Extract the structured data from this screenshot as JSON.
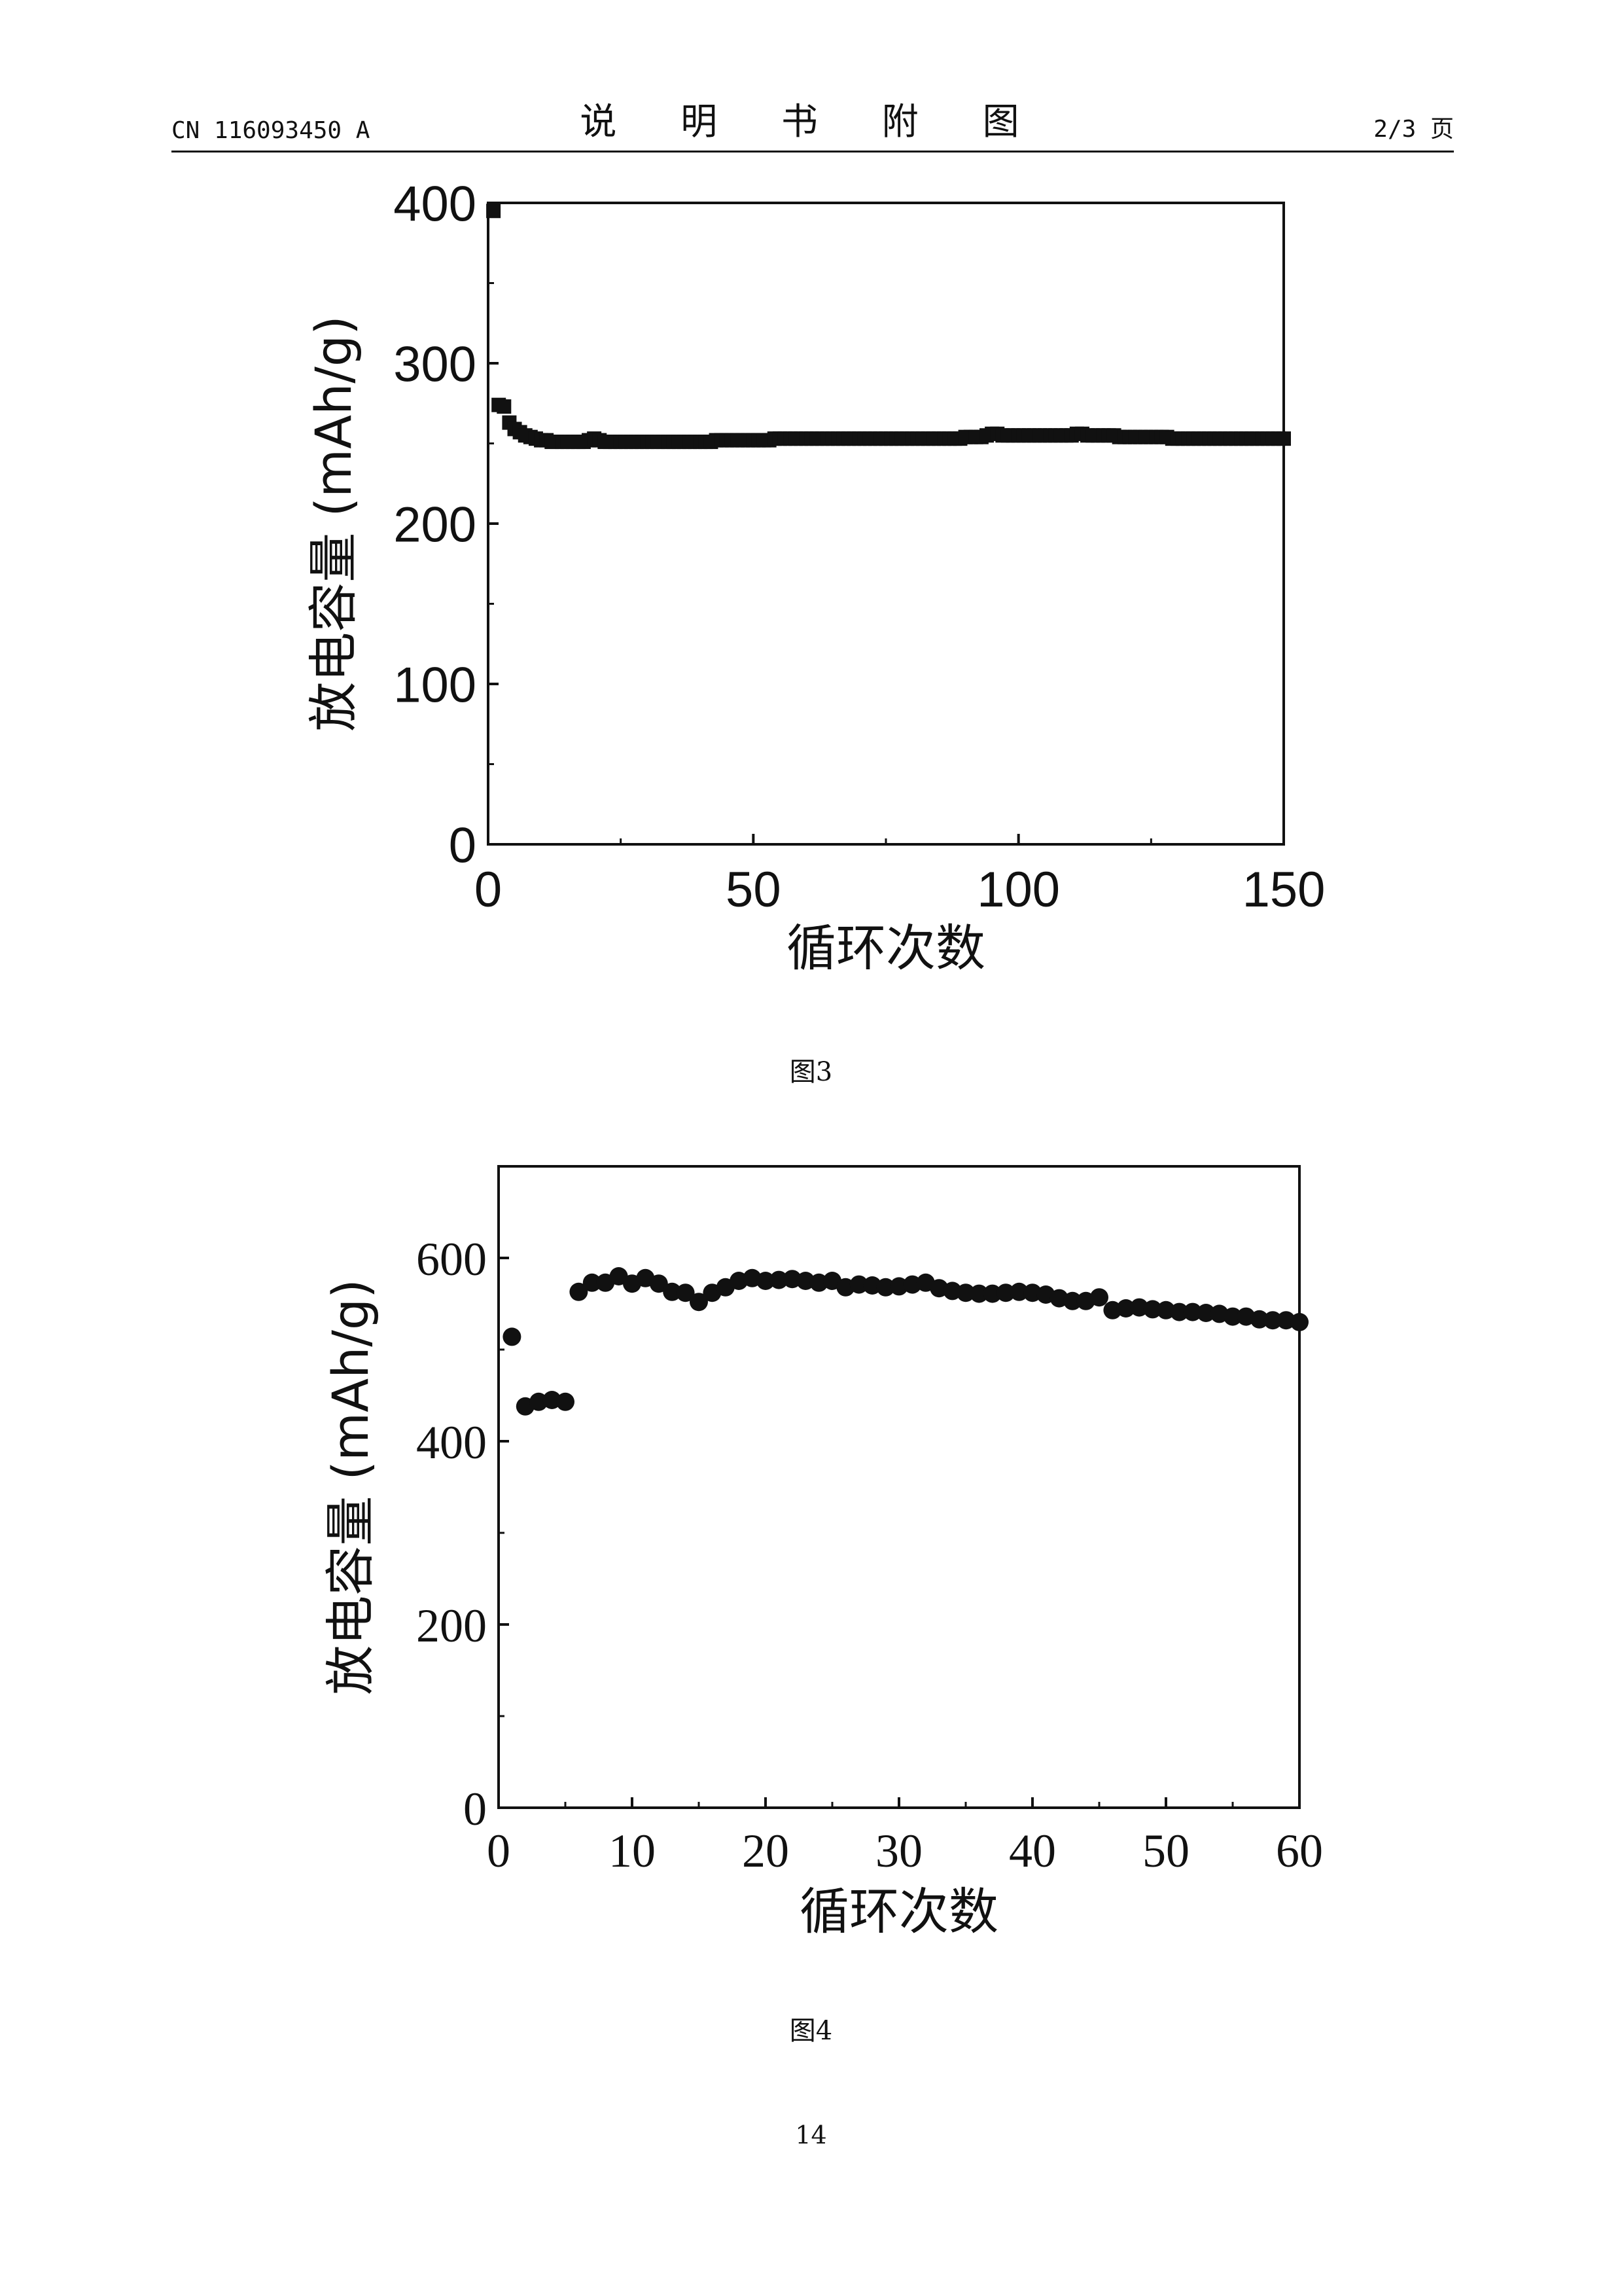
{
  "header": {
    "doc_number": "CN 116093450 A",
    "title": "说 明 书 附 图",
    "page_of": "2/3 页"
  },
  "figures": [
    {
      "caption": "图3"
    },
    {
      "caption": "图4"
    }
  ],
  "page_number": "14",
  "chart_data": [
    {
      "type": "scatter",
      "marker": "square",
      "title": "",
      "xlabel": "循环次数",
      "ylabel": "放电容量 (mAh/g)",
      "xlim": [
        0,
        150
      ],
      "ylim": [
        0,
        400
      ],
      "xticks": [
        0,
        50,
        100,
        150
      ],
      "yticks": [
        0,
        100,
        200,
        300,
        400
      ],
      "x": [
        1,
        2,
        3,
        4,
        5,
        6,
        7,
        8,
        9,
        10,
        11,
        12,
        13,
        14,
        15,
        16,
        17,
        18,
        19,
        20,
        21,
        22,
        23,
        24,
        25,
        26,
        27,
        28,
        29,
        30,
        31,
        32,
        33,
        34,
        35,
        36,
        37,
        38,
        39,
        40,
        41,
        42,
        43,
        44,
        45,
        46,
        47,
        48,
        49,
        50,
        51,
        52,
        53,
        54,
        55,
        56,
        57,
        58,
        59,
        60,
        61,
        62,
        63,
        64,
        65,
        66,
        67,
        68,
        69,
        70,
        71,
        72,
        73,
        74,
        75,
        76,
        77,
        78,
        79,
        80,
        81,
        82,
        83,
        84,
        85,
        86,
        87,
        88,
        89,
        90,
        91,
        92,
        93,
        94,
        95,
        96,
        97,
        98,
        99,
        100,
        101,
        102,
        103,
        104,
        105,
        106,
        107,
        108,
        109,
        110,
        111,
        112,
        113,
        114,
        115,
        116,
        117,
        118,
        119,
        120,
        121,
        122,
        123,
        124,
        125,
        126,
        127,
        128,
        129,
        130,
        131,
        132,
        133,
        134,
        135,
        136,
        137,
        138,
        139,
        140,
        141,
        142,
        143,
        144,
        145,
        146,
        147,
        148,
        149,
        150
      ],
      "y": [
        395,
        274,
        273,
        263,
        259,
        257,
        255,
        254,
        253,
        252,
        252,
        251,
        251,
        251,
        251,
        251,
        251,
        251,
        252,
        253,
        252,
        251,
        251,
        251,
        251,
        251,
        251,
        251,
        251,
        251,
        251,
        251,
        251,
        251,
        251,
        251,
        251,
        251,
        251,
        251,
        251,
        251,
        252,
        252,
        252,
        252,
        252,
        252,
        252,
        252,
        252,
        252,
        252,
        253,
        253,
        253,
        253,
        253,
        253,
        253,
        253,
        253,
        253,
        253,
        253,
        253,
        253,
        253,
        253,
        253,
        253,
        253,
        253,
        253,
        253,
        253,
        253,
        253,
        253,
        253,
        253,
        253,
        253,
        253,
        253,
        253,
        253,
        253,
        253,
        254,
        254,
        254,
        254,
        255,
        256,
        256,
        255,
        255,
        255,
        255,
        255,
        255,
        255,
        255,
        255,
        255,
        255,
        255,
        255,
        255,
        256,
        256,
        255,
        255,
        255,
        255,
        255,
        255,
        254,
        254,
        254,
        254,
        254,
        254,
        254,
        254,
        254,
        254,
        253,
        253,
        253,
        253,
        253,
        253,
        253,
        253,
        253,
        253,
        253,
        253,
        253,
        253,
        253,
        253,
        253,
        253,
        253,
        253,
        253,
        253
      ]
    },
    {
      "type": "scatter",
      "marker": "circle",
      "title": "",
      "xlabel": "循环次数",
      "ylabel": "放电容量 (mAh/g)",
      "xlim": [
        0,
        60
      ],
      "ylim": [
        0,
        700
      ],
      "xticks": [
        0,
        10,
        20,
        30,
        40,
        50,
        60
      ],
      "yticks": [
        0,
        200,
        400,
        600
      ],
      "x": [
        1,
        2,
        3,
        4,
        5,
        6,
        7,
        8,
        9,
        10,
        11,
        12,
        13,
        14,
        15,
        16,
        17,
        18,
        19,
        20,
        21,
        22,
        23,
        24,
        25,
        26,
        27,
        28,
        29,
        30,
        31,
        32,
        33,
        34,
        35,
        36,
        37,
        38,
        39,
        40,
        41,
        42,
        43,
        44,
        45,
        46,
        47,
        48,
        49,
        50,
        51,
        52,
        53,
        54,
        55,
        56,
        57,
        58,
        59,
        60
      ],
      "y": [
        514,
        438,
        443,
        445,
        443,
        563,
        573,
        573,
        580,
        572,
        578,
        572,
        563,
        562,
        552,
        562,
        568,
        575,
        578,
        575,
        576,
        577,
        575,
        573,
        575,
        568,
        571,
        570,
        568,
        569,
        571,
        573,
        567,
        564,
        562,
        561,
        561,
        562,
        563,
        562,
        560,
        556,
        553,
        553,
        557,
        543,
        545,
        546,
        544,
        543,
        541,
        541,
        540,
        539,
        536,
        536,
        533,
        532,
        532,
        530
      ]
    }
  ]
}
